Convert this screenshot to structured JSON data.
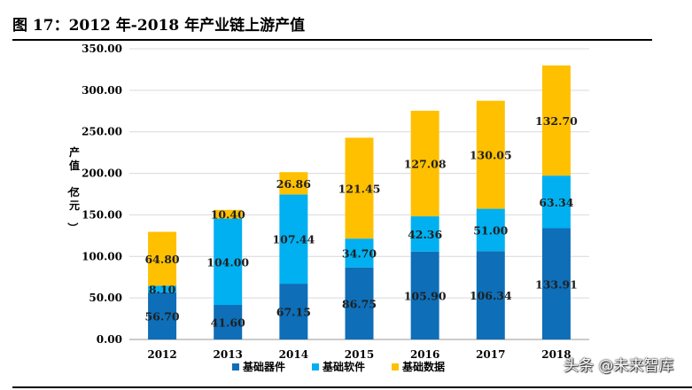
{
  "page": {
    "title": "图 17：2012 年-2018 年产业链上游产值",
    "watermark": "头条 @未来智库"
  },
  "chart_data": {
    "type": "bar",
    "stacked": true,
    "categories": [
      "2012",
      "2013",
      "2014",
      "2015",
      "2016",
      "2017",
      "2018"
    ],
    "ylabel": "产值（亿元）",
    "xlabel": "",
    "ylim": [
      0,
      350
    ],
    "yticks": [
      "0.00",
      "50.00",
      "100.00",
      "150.00",
      "200.00",
      "250.00",
      "300.00",
      "350.00"
    ],
    "grid": true,
    "legend_position": "bottom",
    "series": [
      {
        "name": "基础器件",
        "color": "#0E6EB8",
        "values": [
          56.7,
          41.6,
          67.15,
          86.75,
          105.9,
          106.34,
          133.91
        ],
        "labels": [
          "56.70",
          "41.60",
          "67.15",
          "86.75",
          "105.90",
          "106.34",
          "133.91"
        ]
      },
      {
        "name": "基础软件",
        "color": "#00B0F0",
        "values": [
          8.1,
          104.0,
          107.44,
          34.7,
          42.36,
          51.0,
          63.34
        ],
        "labels": [
          "8.10",
          "104.00",
          "107.44",
          "34.70",
          "42.36",
          "51.00",
          "63.34"
        ]
      },
      {
        "name": "基础数据",
        "color": "#FFC000",
        "values": [
          64.8,
          10.4,
          26.86,
          121.45,
          127.08,
          130.05,
          132.7
        ],
        "labels": [
          "64.80",
          "10.40",
          "26.86",
          "121.45",
          "127.08",
          "130.05",
          "132.70"
        ]
      }
    ]
  }
}
